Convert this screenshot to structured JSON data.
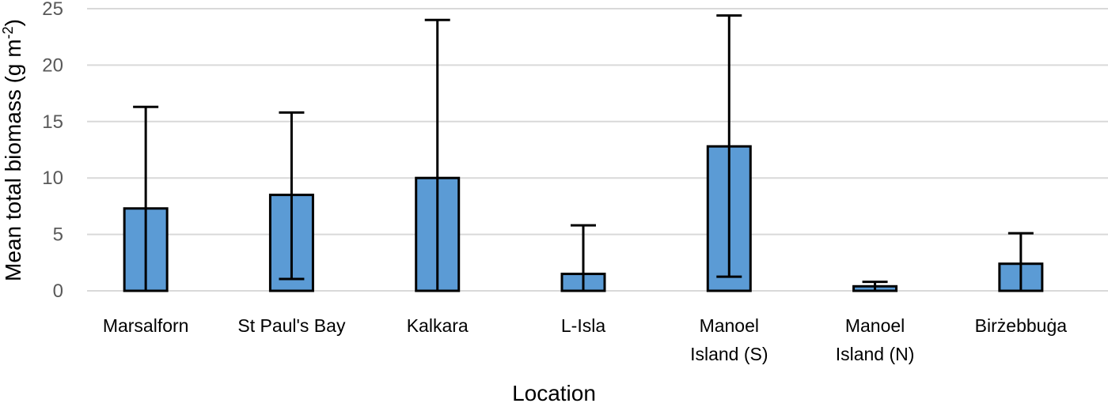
{
  "chart_data": {
    "type": "bar",
    "title": "",
    "xlabel": "Location",
    "ylabel": "Mean total biomass (g m-2)",
    "ylabel_parts": {
      "main": "Mean total biomass (g m",
      "sup": "-2",
      "end": ")"
    },
    "ylim": [
      0,
      25
    ],
    "yticks": [
      0,
      5,
      10,
      15,
      20,
      25
    ],
    "grid": true,
    "legend": null,
    "categories": [
      [
        "Marsalforn"
      ],
      [
        "St Paul's Bay"
      ],
      [
        "Kalkara"
      ],
      [
        "L-Isla"
      ],
      [
        "Manoel",
        "Island (S)"
      ],
      [
        "Manoel",
        "Island (N)"
      ],
      [
        "Birżebbuġa"
      ]
    ],
    "category_names": [
      "Marsalforn",
      "St Paul's Bay",
      "Kalkara",
      "L-Isla",
      "Manoel Island (S)",
      "Manoel Island (N)",
      "Birżebbuġa"
    ],
    "series": [
      {
        "name": "Mean total biomass",
        "values": [
          7.3,
          8.5,
          10.0,
          1.5,
          12.8,
          0.4,
          2.4
        ],
        "error_upper": [
          16.3,
          15.8,
          24.0,
          5.8,
          24.4,
          0.8,
          5.1
        ],
        "error_lower": [
          0,
          1.05,
          0,
          0,
          1.25,
          0,
          0
        ],
        "error_lower_cap": [
          false,
          true,
          false,
          false,
          true,
          false,
          false
        ],
        "color": "#5b9bd5"
      }
    ]
  },
  "style": {
    "bar_color": "#5b9bd5",
    "bar_edge": "#000000",
    "grid_color": "#d9d9d9"
  }
}
